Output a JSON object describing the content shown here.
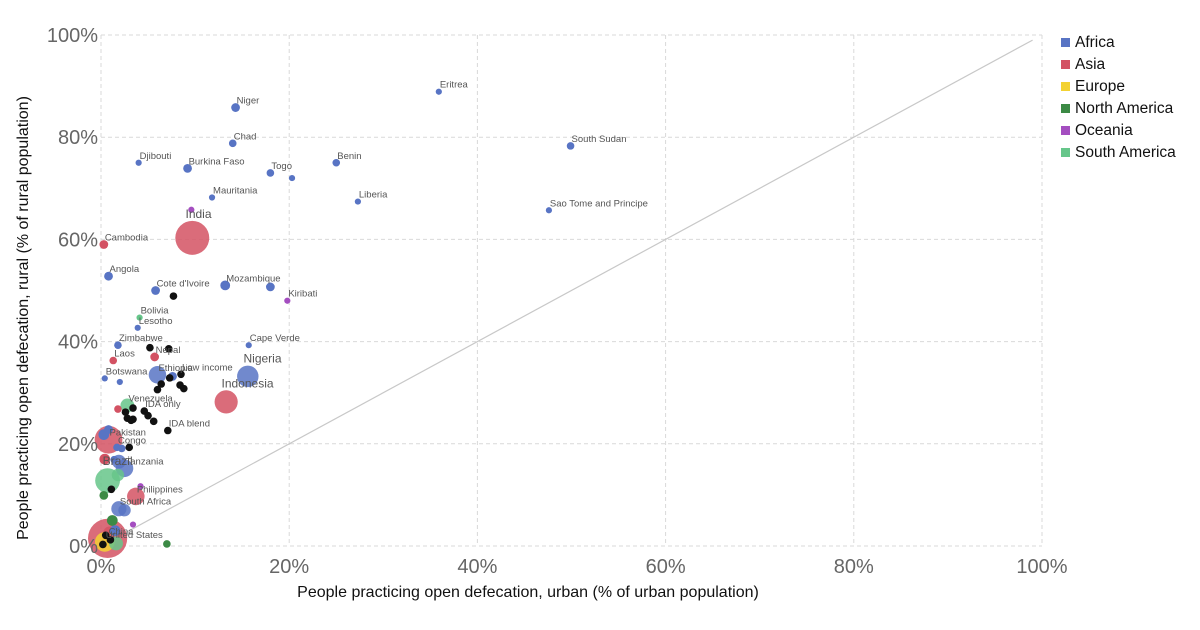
{
  "chart_data": {
    "type": "scatter",
    "xlabel": "People practicing open defecation, urban (% of urban population)",
    "ylabel": "People practicing open defecation, rural (% of rural population)",
    "xlim": [
      0,
      100
    ],
    "ylim": [
      0,
      100
    ],
    "x_ticks": [
      "0%",
      "20%",
      "40%",
      "60%",
      "80%",
      "100%"
    ],
    "y_ticks": [
      "0%",
      "20%",
      "40%",
      "60%",
      "80%",
      "100%"
    ],
    "grid": true,
    "reference_line": "diagonal y = x",
    "legend_position": "top-right",
    "colors": {
      "Africa": "#5874c4",
      "Asia": "#d35263",
      "Europe": "#f3d232",
      "North America": "#3c8a45",
      "Oceania": "#a44ec0",
      "South America": "#66c68a",
      "Other": "#111111"
    },
    "legend": [
      "Africa",
      "Asia",
      "Europe",
      "North America",
      "Oceania",
      "South America"
    ],
    "points": [
      {
        "label": "Eritrea",
        "region": "Africa",
        "x": 35.9,
        "y": 88.9,
        "size": 1
      },
      {
        "label": "Niger",
        "region": "Africa",
        "x": 14.3,
        "y": 85.8,
        "size": 2
      },
      {
        "label": "Chad",
        "region": "Africa",
        "x": 14.0,
        "y": 78.8,
        "size": 1.5
      },
      {
        "label": "South Sudan",
        "region": "Africa",
        "x": 49.9,
        "y": 78.3,
        "size": 1.5
      },
      {
        "label": "Benin",
        "region": "Africa",
        "x": 25.0,
        "y": 75.0,
        "size": 1.5
      },
      {
        "label": "Djibouti",
        "region": "Africa",
        "x": 4.0,
        "y": 75.0,
        "size": 1
      },
      {
        "label": "Burkina Faso",
        "region": "Africa",
        "x": 9.2,
        "y": 73.9,
        "size": 2
      },
      {
        "label": "Togo",
        "region": "Africa",
        "x": 18.0,
        "y": 73.0,
        "size": 1.5
      },
      {
        "label": "",
        "region": "Africa",
        "x": 20.3,
        "y": 72.0,
        "size": 1
      },
      {
        "label": "Mauritania",
        "region": "Africa",
        "x": 11.8,
        "y": 68.2,
        "size": 1
      },
      {
        "label": "Liberia",
        "region": "Africa",
        "x": 27.3,
        "y": 67.4,
        "size": 1
      },
      {
        "label": "Sao Tome and Principe",
        "region": "Africa",
        "x": 47.6,
        "y": 65.7,
        "size": 1
      },
      {
        "label": "",
        "region": "Oceania",
        "x": 9.6,
        "y": 65.8,
        "size": 1
      },
      {
        "label": "India",
        "region": "Asia",
        "x": 9.7,
        "y": 60.3,
        "size": 30
      },
      {
        "label": "Cambodia",
        "region": "Asia",
        "x": 0.3,
        "y": 59.0,
        "size": 2
      },
      {
        "label": "Angola",
        "region": "Africa",
        "x": 0.8,
        "y": 52.8,
        "size": 2
      },
      {
        "label": "Mozambique",
        "region": "Africa",
        "x": 13.2,
        "y": 51.0,
        "size": 2.5
      },
      {
        "label": "",
        "region": "Africa",
        "x": 18.0,
        "y": 50.7,
        "size": 2
      },
      {
        "label": "Cote d'Ivoire",
        "region": "Africa",
        "x": 5.8,
        "y": 50.0,
        "size": 2
      },
      {
        "label": "",
        "region": "Other",
        "x": 7.7,
        "y": 48.9,
        "size": 1.5
      },
      {
        "label": "Kiribati",
        "region": "Oceania",
        "x": 19.8,
        "y": 48.0,
        "size": 1
      },
      {
        "label": "Bolivia",
        "region": "South America",
        "x": 4.1,
        "y": 44.7,
        "size": 1
      },
      {
        "label": "Lesotho",
        "region": "Africa",
        "x": 3.9,
        "y": 42.7,
        "size": 1
      },
      {
        "label": "Zimbabwe",
        "region": "Africa",
        "x": 1.8,
        "y": 39.3,
        "size": 1.5
      },
      {
        "label": "Cape Verde",
        "region": "Africa",
        "x": 15.7,
        "y": 39.3,
        "size": 1
      },
      {
        "label": "",
        "region": "Other",
        "x": 5.2,
        "y": 38.8,
        "size": 1.5
      },
      {
        "label": "",
        "region": "Other",
        "x": 7.2,
        "y": 38.6,
        "size": 1.5
      },
      {
        "label": "Nepal",
        "region": "Asia",
        "x": 5.7,
        "y": 37.0,
        "size": 2
      },
      {
        "label": "Laos",
        "region": "Asia",
        "x": 1.3,
        "y": 36.3,
        "size": 1.5
      },
      {
        "label": "Ethiopia",
        "region": "Africa",
        "x": 6.0,
        "y": 33.5,
        "size": 8
      },
      {
        "label": "Low income",
        "region": "Other",
        "x": 8.5,
        "y": 33.6,
        "size": 1.5
      },
      {
        "label": "",
        "region": "Other",
        "x": 7.3,
        "y": 32.9,
        "size": 1.5
      },
      {
        "label": "",
        "region": "Africa",
        "x": 7.6,
        "y": 33.2,
        "size": 2
      },
      {
        "label": "Nigeria",
        "region": "Africa",
        "x": 15.6,
        "y": 33.2,
        "size": 12
      },
      {
        "label": "Botswana",
        "region": "Africa",
        "x": 0.4,
        "y": 32.8,
        "size": 1
      },
      {
        "label": "",
        "region": "Africa",
        "x": 2.0,
        "y": 32.1,
        "size": 1
      },
      {
        "label": "",
        "region": "Other",
        "x": 6.4,
        "y": 31.7,
        "size": 1.5
      },
      {
        "label": "",
        "region": "Other",
        "x": 8.4,
        "y": 31.5,
        "size": 1.5
      },
      {
        "label": "",
        "region": "Other",
        "x": 8.8,
        "y": 30.8,
        "size": 1.5
      },
      {
        "label": "",
        "region": "Other",
        "x": 6.0,
        "y": 30.6,
        "size": 1.5
      },
      {
        "label": "Indonesia",
        "region": "Asia",
        "x": 13.3,
        "y": 28.2,
        "size": 14
      },
      {
        "label": "Venezuela",
        "region": "South America",
        "x": 2.8,
        "y": 27.5,
        "size": 5
      },
      {
        "label": "",
        "region": "Other",
        "x": 3.4,
        "y": 27.0,
        "size": 1.5
      },
      {
        "label": "",
        "region": "Asia",
        "x": 1.8,
        "y": 26.8,
        "size": 1.5
      },
      {
        "label": "IDA only",
        "region": "Other",
        "x": 4.6,
        "y": 26.4,
        "size": 1.5
      },
      {
        "label": "",
        "region": "Other",
        "x": 2.6,
        "y": 26.2,
        "size": 1.5
      },
      {
        "label": "",
        "region": "Other",
        "x": 5.0,
        "y": 25.5,
        "size": 1.5
      },
      {
        "label": "",
        "region": "Other",
        "x": 2.8,
        "y": 25.0,
        "size": 1.5
      },
      {
        "label": "",
        "region": "Other",
        "x": 3.4,
        "y": 24.8,
        "size": 1.5
      },
      {
        "label": "",
        "region": "Other",
        "x": 3.2,
        "y": 24.6,
        "size": 1.5
      },
      {
        "label": "",
        "region": "Other",
        "x": 5.6,
        "y": 24.4,
        "size": 1.5
      },
      {
        "label": "IDA blend",
        "region": "Other",
        "x": 7.1,
        "y": 22.6,
        "size": 1.5
      },
      {
        "label": "Pakistan",
        "region": "Asia",
        "x": 0.8,
        "y": 20.8,
        "size": 20
      },
      {
        "label": "",
        "region": "Africa",
        "x": 0.8,
        "y": 22.8,
        "size": 2
      },
      {
        "label": "",
        "region": "Africa",
        "x": 0.3,
        "y": 21.8,
        "size": 3
      },
      {
        "label": "Congo",
        "region": "Africa",
        "x": 1.7,
        "y": 19.3,
        "size": 1.5
      },
      {
        "label": "",
        "region": "Other",
        "x": 3.0,
        "y": 19.3,
        "size": 1.5
      },
      {
        "label": "",
        "region": "Africa",
        "x": 2.2,
        "y": 19.1,
        "size": 1.5
      },
      {
        "label": "Tanzania",
        "region": "Africa",
        "x": 2.5,
        "y": 15.2,
        "size": 8
      },
      {
        "label": "",
        "region": "Asia",
        "x": 0.4,
        "y": 17.0,
        "size": 3
      },
      {
        "label": "",
        "region": "Africa",
        "x": 1.9,
        "y": 16.5,
        "size": 5
      },
      {
        "label": "",
        "region": "Africa",
        "x": 1.4,
        "y": 16.9,
        "size": 1.5
      },
      {
        "label": "Brazil",
        "region": "South America",
        "x": 0.7,
        "y": 12.8,
        "size": 16
      },
      {
        "label": "",
        "region": "South America",
        "x": 1.8,
        "y": 13.9,
        "size": 4
      },
      {
        "label": "",
        "region": "Other",
        "x": 1.1,
        "y": 11.1,
        "size": 1.5
      },
      {
        "label": "",
        "region": "Oceania",
        "x": 4.2,
        "y": 11.7,
        "size": 1
      },
      {
        "label": "Philippines",
        "region": "Asia",
        "x": 3.7,
        "y": 9.7,
        "size": 8
      },
      {
        "label": "",
        "region": "North America",
        "x": 0.3,
        "y": 9.9,
        "size": 2
      },
      {
        "label": "South Africa",
        "region": "Africa",
        "x": 1.9,
        "y": 7.3,
        "size": 6
      },
      {
        "label": "",
        "region": "Africa",
        "x": 2.5,
        "y": 7.0,
        "size": 4
      },
      {
        "label": "China",
        "region": "Asia",
        "x": 0.7,
        "y": 1.5,
        "size": 40
      },
      {
        "label": "",
        "region": "North America",
        "x": 1.2,
        "y": 5.0,
        "size": 3
      },
      {
        "label": "",
        "region": "Oceania",
        "x": 3.4,
        "y": 4.2,
        "size": 1
      },
      {
        "label": "United States",
        "region": "Europe",
        "x": 0.4,
        "y": 0.8,
        "size": 10
      },
      {
        "label": "",
        "region": "North America",
        "x": 7.0,
        "y": 0.4,
        "size": 1.5
      },
      {
        "label": "",
        "region": "South America",
        "x": 1.6,
        "y": 0.5,
        "size": 5
      },
      {
        "label": "",
        "region": "Other",
        "x": 0.5,
        "y": 2.1,
        "size": 1.5
      },
      {
        "label": "",
        "region": "Other",
        "x": 1.0,
        "y": 1.2,
        "size": 1.5
      },
      {
        "label": "",
        "region": "Other",
        "x": 0.2,
        "y": 0.3,
        "size": 1.5
      },
      {
        "label": "",
        "region": "Africa",
        "x": 1.5,
        "y": 3.0,
        "size": 3
      },
      {
        "label": "",
        "region": "Asia",
        "x": 0.9,
        "y": 2.6,
        "size": 4
      }
    ]
  }
}
